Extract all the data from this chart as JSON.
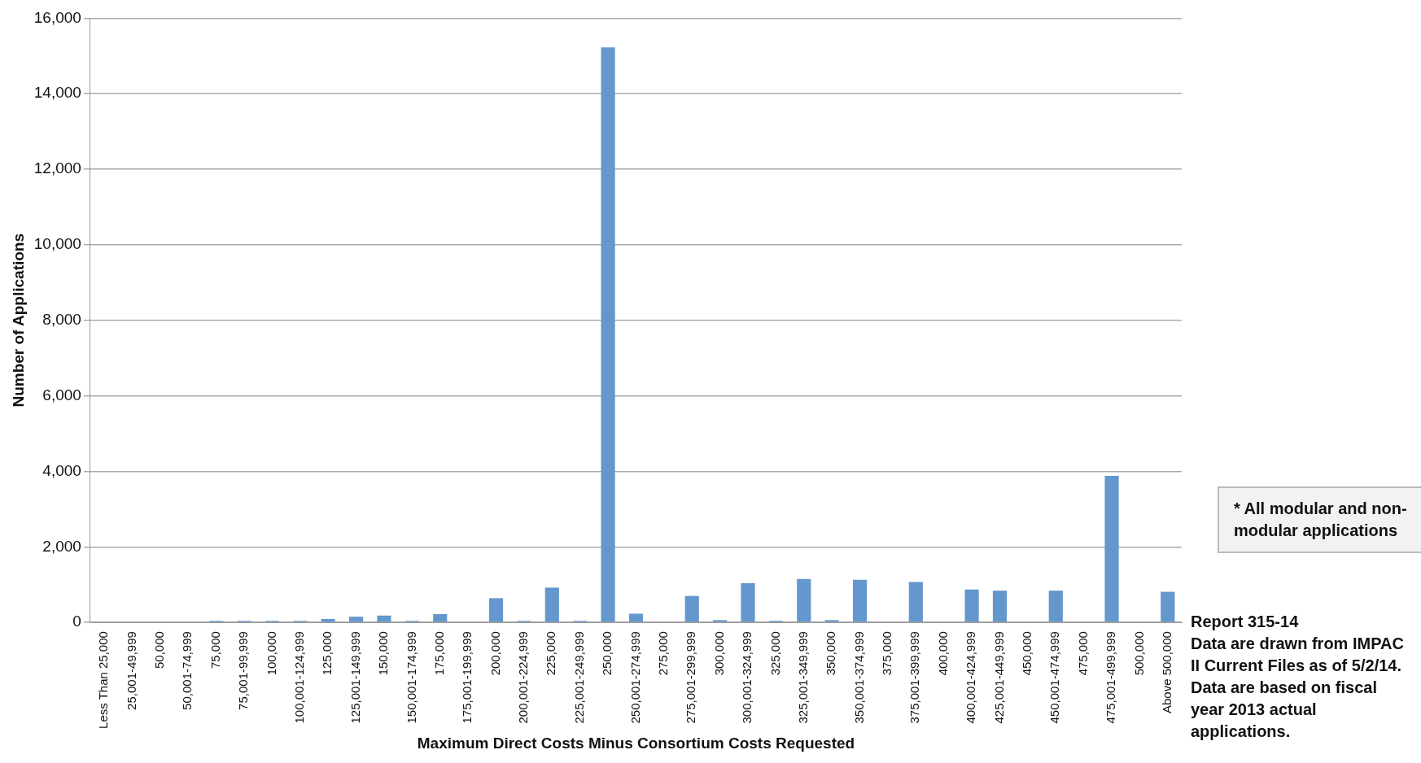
{
  "chart_data": {
    "type": "bar",
    "xlabel": "Maximum Direct Costs Minus Consortium Costs Requested",
    "ylabel": "Number of Applications",
    "categories": [
      "Less Than 25,000",
      "25,001-49,999",
      "50,000",
      "50,001-74,999",
      "75,000",
      "75,001-99,999",
      "100,000",
      "100,001-124,999",
      "125,000",
      "125,001-149,999",
      "150,000",
      "150,001-174,999",
      "175,000",
      "175,001-199,999",
      "200,000",
      "200,001-224,999",
      "225,000",
      "225,001-249,999",
      "250,000",
      "250,001-274,999",
      "275,000",
      "275,001-299,999",
      "300,000",
      "300,001-324,999",
      "325,000",
      "325,001-349,999",
      "350,000",
      "350,001-374,999",
      "375,000",
      "375,001-399,999",
      "400,000",
      "400,001-424,999",
      "425,001-449,999",
      "450,000",
      "450,001-474,999",
      "475,000",
      "475,001-499,999",
      "500,000",
      "Above 500,000"
    ],
    "values": [
      0,
      0,
      0,
      0,
      40,
      40,
      40,
      40,
      90,
      150,
      180,
      40,
      220,
      0,
      640,
      40,
      920,
      40,
      15230,
      230,
      0,
      700,
      60,
      1040,
      40,
      1150,
      60,
      1130,
      0,
      1070,
      0,
      870,
      840,
      0,
      840,
      0,
      3880,
      0,
      810
    ],
    "color": "#6497cd",
    "ylim": [
      0,
      16000
    ],
    "yticks": [
      {
        "value": 0,
        "label": "0"
      },
      {
        "value": 2000,
        "label": "2,000"
      },
      {
        "value": 4000,
        "label": "4,000"
      },
      {
        "value": 6000,
        "label": "6,000"
      },
      {
        "value": 8000,
        "label": "8,000"
      },
      {
        "value": 10000,
        "label": "10,000"
      },
      {
        "value": 12000,
        "label": "12,000"
      },
      {
        "value": 14000,
        "label": "14,000"
      },
      {
        "value": 16000,
        "label": "16,000"
      }
    ],
    "grid": "y",
    "legend": false,
    "annotations": [
      "* All modular and non-modular applications",
      "Report 315-14\nData are drawn from IMPAC II Current Files as of 5/2/14. Data are based on fiscal year 2013 actual applications."
    ]
  }
}
